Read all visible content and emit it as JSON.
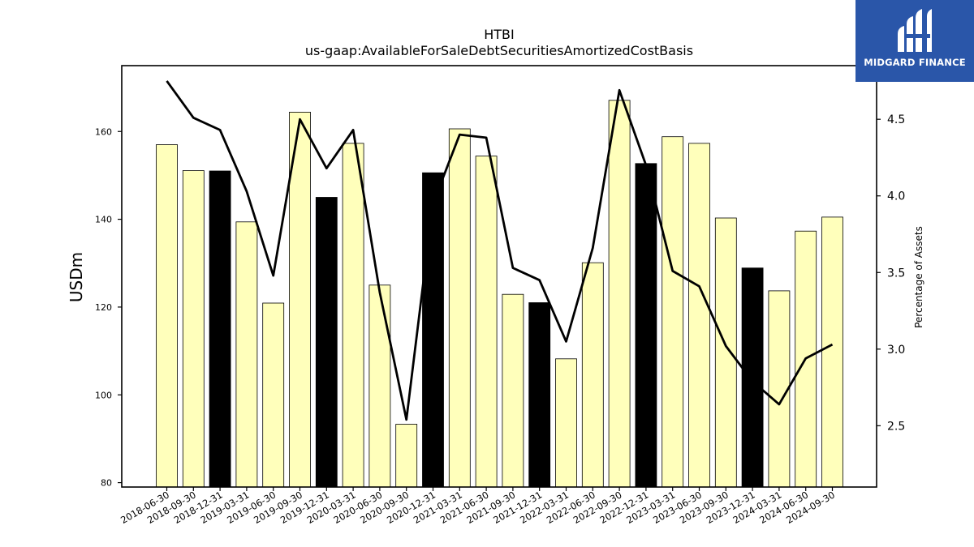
{
  "chart_data": {
    "type": "bar",
    "title": "HTBI",
    "subtitle": "us-gaap:AvailableForSaleDebtSecuritiesAmortizedCostBasis",
    "ylabel": "USDm",
    "y2label": "Percentage of Assets",
    "categories": [
      "2018-06-30",
      "2018-09-30",
      "2018-12-31",
      "2019-03-31",
      "2019-06-30",
      "2019-09-30",
      "2019-12-31",
      "2020-03-31",
      "2020-06-30",
      "2020-09-30",
      "2020-12-31",
      "2021-03-31",
      "2021-06-30",
      "2021-09-30",
      "2021-12-31",
      "2022-03-31",
      "2022-06-30",
      "2022-09-30",
      "2022-12-31",
      "2023-03-31",
      "2023-06-30",
      "2023-09-30",
      "2023-12-31",
      "2024-03-31",
      "2024-06-30",
      "2024-09-30"
    ],
    "series": [
      {
        "values": [
          157.0,
          151.1,
          151.0,
          139.4,
          120.9,
          164.4,
          145.0,
          157.3,
          125.0,
          93.3,
          150.6,
          160.6,
          154.4,
          122.9,
          121.0,
          108.2,
          130.1,
          167.1,
          152.7,
          158.8,
          157.3,
          140.3,
          128.9,
          123.7,
          137.3,
          140.5
        ],
        "highlight": [
          false,
          false,
          true,
          false,
          false,
          false,
          true,
          false,
          false,
          false,
          true,
          false,
          false,
          false,
          true,
          false,
          false,
          false,
          true,
          false,
          false,
          false,
          true,
          false,
          false,
          false
        ]
      },
      {
        "axis": "right",
        "values": [
          4.75,
          4.51,
          4.43,
          4.03,
          3.48,
          4.5,
          4.18,
          4.43,
          3.37,
          2.54,
          3.95,
          4.4,
          4.38,
          3.53,
          3.45,
          3.05,
          3.66,
          4.69,
          4.2,
          3.51,
          3.41,
          3.02,
          2.79,
          2.64,
          2.94,
          3.03
        ]
      }
    ],
    "ylim": [
      79,
      175
    ],
    "y2lim": [
      2.1,
      4.85
    ],
    "yticks": [
      80,
      100,
      120,
      140,
      160
    ],
    "y2ticks": [
      "2.5",
      "3.0",
      "3.5",
      "4.0",
      "4.5"
    ],
    "colors": {
      "bar": "#ffffbb",
      "highlight": "#000000",
      "line": "#000000",
      "edge": "#000000"
    },
    "grid": false
  },
  "logo": {
    "text": "MIDGARD FINANCE",
    "background": "#2a56a9"
  }
}
